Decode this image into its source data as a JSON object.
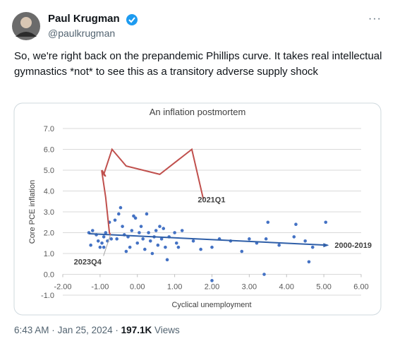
{
  "author": {
    "name": "Paul Krugman",
    "handle": "@paulkrugman"
  },
  "more": "···",
  "text": "So, we're right back on the prepandemic Phillips curve. It takes real intellectual gymnastics *not* to see this as a transitory adverse supply shock",
  "footer": {
    "time": "6:43 AM",
    "separator": "·",
    "date": "Jan 25, 2024",
    "views": "197.1K",
    "views_label": "Views"
  },
  "chart_data": {
    "type": "scatter",
    "title": "An inflation postmortem",
    "x_label": "Cyclical unemployment",
    "y_label": "Core PCE inflation",
    "xlim": [
      -2,
      6
    ],
    "ylim": [
      -1,
      7
    ],
    "xticks": [
      {
        "value": -2,
        "label": "-2.00"
      },
      {
        "value": -1,
        "label": "-1.00"
      },
      {
        "value": 0,
        "label": "0.00"
      },
      {
        "value": 1,
        "label": "1.00"
      },
      {
        "value": 2,
        "label": "2.00"
      },
      {
        "value": 3,
        "label": "3.00"
      },
      {
        "value": 4,
        "label": "4.00"
      },
      {
        "value": 5,
        "label": "5.00"
      },
      {
        "value": 6,
        "label": "6.00"
      }
    ],
    "yticks": [
      {
        "value": -1,
        "label": "-1.0"
      },
      {
        "value": 0,
        "label": "0.0"
      },
      {
        "value": 1,
        "label": "1.0"
      },
      {
        "value": 2,
        "label": "2.0"
      },
      {
        "value": 3,
        "label": "3.0"
      },
      {
        "value": 4,
        "label": "4.0"
      },
      {
        "value": 5,
        "label": "5.0"
      },
      {
        "value": 6,
        "label": "6.0"
      },
      {
        "value": 7,
        "label": "7.0"
      }
    ],
    "grid": true,
    "series": [
      {
        "type": "scatter",
        "color": "#4472c4",
        "x": [
          -1.3,
          -1.25,
          -1.2,
          -1.1,
          -1.05,
          -1.0,
          -0.95,
          -0.9,
          -0.9,
          -0.85,
          -0.8,
          -0.75,
          -0.7,
          -0.6,
          -0.55,
          -0.5,
          -0.45,
          -0.4,
          -0.35,
          -0.3,
          -0.25,
          -0.2,
          -0.15,
          -0.1,
          -0.05,
          0.0,
          0.05,
          0.1,
          0.15,
          0.2,
          0.25,
          0.3,
          0.35,
          0.4,
          0.45,
          0.5,
          0.55,
          0.6,
          0.65,
          0.7,
          0.75,
          0.8,
          0.85,
          1.0,
          1.05,
          1.1,
          1.2,
          1.5,
          1.7,
          2.0,
          2.2,
          2.5,
          2.8,
          3.0,
          3.2,
          3.4,
          3.45,
          3.5,
          3.8,
          4.2,
          4.25,
          4.5,
          4.6,
          4.7,
          5.05,
          2.0
        ],
        "values": [
          2.0,
          1.4,
          2.1,
          1.9,
          1.6,
          1.3,
          1.5,
          1.3,
          1.8,
          2.0,
          1.6,
          2.5,
          1.7,
          2.6,
          1.7,
          2.9,
          3.2,
          2.3,
          1.9,
          1.1,
          1.8,
          1.3,
          2.1,
          2.8,
          2.7,
          1.5,
          2.0,
          2.3,
          1.7,
          1.2,
          2.9,
          2.0,
          1.6,
          1.0,
          1.8,
          2.1,
          1.4,
          2.3,
          1.7,
          2.2,
          1.3,
          0.7,
          1.8,
          2.0,
          1.5,
          1.3,
          2.1,
          1.6,
          1.2,
          1.3,
          1.7,
          1.6,
          1.1,
          1.7,
          1.5,
          0.0,
          1.7,
          2.5,
          1.4,
          1.8,
          2.4,
          1.6,
          0.6,
          1.3,
          2.5,
          -0.3
        ]
      },
      {
        "type": "line",
        "name": "2000-2019",
        "color": "#2f5fa8",
        "x": [
          -1.3,
          5.1
        ],
        "values": [
          1.95,
          1.4
        ]
      },
      {
        "type": "line",
        "color": "#c0504d",
        "x": [
          1.77,
          1.46,
          0.6,
          -0.3,
          -0.68,
          -0.9,
          -0.95,
          -0.85,
          -0.95,
          -0.85,
          -0.75,
          -0.72
        ],
        "values": [
          3.6,
          6.0,
          4.8,
          5.2,
          6.0,
          4.8,
          5.0,
          4.7,
          4.9,
          3.7,
          2.0,
          1.9
        ]
      }
    ],
    "annotations": [
      {
        "text": "2021Q1"
      },
      {
        "text": "2023Q4"
      }
    ]
  }
}
